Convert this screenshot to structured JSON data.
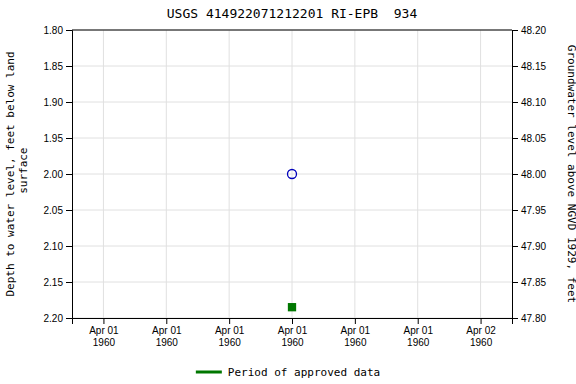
{
  "chart_data": {
    "type": "scatter",
    "title": "USGS 414922071212201 RI-EPB  934",
    "y_label": "Depth to water level, feet below land\n surface",
    "y2_label": "Groundwater level above NGVD 1929, feet",
    "categories": [
      "Apr 01\n1960",
      "Apr 01\n1960",
      "Apr 01\n1960",
      "Apr 01\n1960",
      "Apr 01\n1960",
      "Apr 01\n1960",
      "Apr 02\n1960"
    ],
    "series": [
      {
        "values": [
          null,
          null,
          null,
          2.0,
          null,
          null,
          null
        ],
        "color": "#0000bb",
        "marker": "open-circle"
      },
      {
        "name": "Period of approved data",
        "values": [
          null,
          null,
          null,
          2.185,
          null,
          null,
          null
        ],
        "color": "#007700",
        "marker": "square"
      }
    ],
    "ylim": [
      2.2,
      1.8
    ],
    "yticks": [
      {
        "value": 1.8,
        "label": "1.80"
      },
      {
        "value": 1.85,
        "label": "1.85"
      },
      {
        "value": 1.9,
        "label": "1.90"
      },
      {
        "value": 1.95,
        "label": "1.95"
      },
      {
        "value": 2.0,
        "label": "2.00"
      },
      {
        "value": 2.05,
        "label": "2.05"
      },
      {
        "value": 2.1,
        "label": "2.10"
      },
      {
        "value": 2.15,
        "label": "2.15"
      },
      {
        "value": 2.2,
        "label": "2.20"
      }
    ],
    "y2lim": [
      47.8,
      48.2
    ],
    "y2ticks": [
      {
        "value": 47.8,
        "label": "47.80"
      },
      {
        "value": 47.85,
        "label": "47.85"
      },
      {
        "value": 47.9,
        "label": "47.90"
      },
      {
        "value": 47.95,
        "label": "47.95"
      },
      {
        "value": 48.0,
        "label": "48.00"
      },
      {
        "value": 48.05,
        "label": "48.05"
      },
      {
        "value": 48.1,
        "label": "48.10"
      },
      {
        "value": 48.15,
        "label": "48.15"
      },
      {
        "value": 48.2,
        "label": "48.20"
      }
    ],
    "grid": true,
    "legend": "bottom"
  }
}
